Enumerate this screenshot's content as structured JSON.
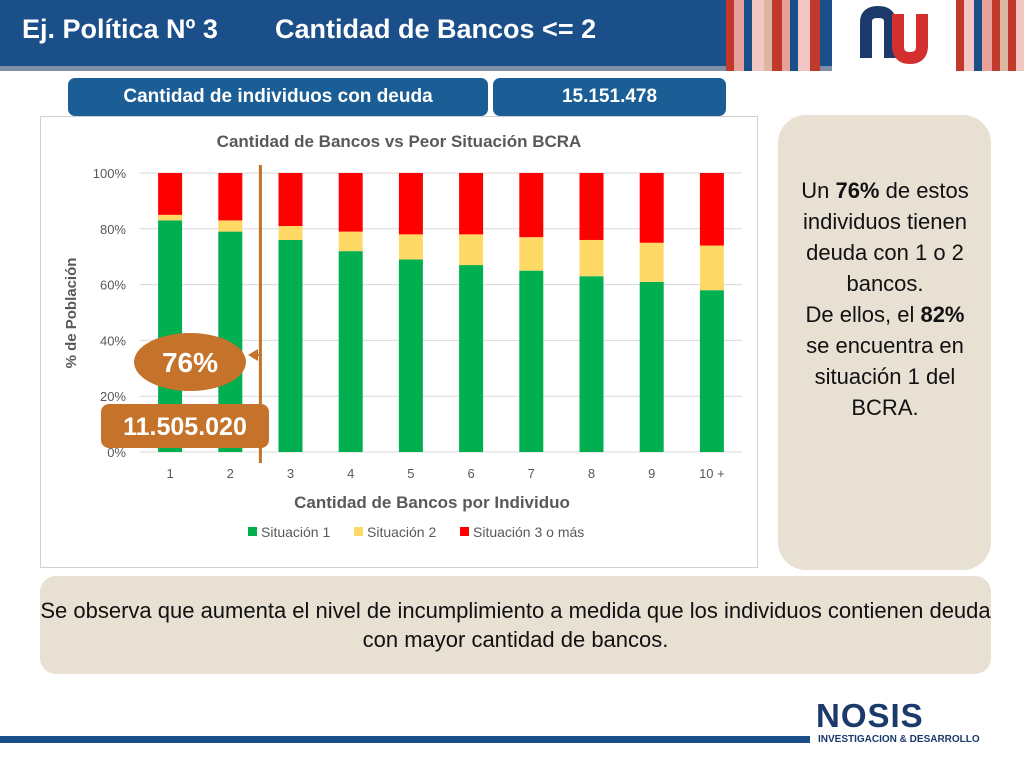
{
  "header": {
    "title": "Ej. Política Nº 3",
    "subtitle": "Cantidad de Bancos <= 2",
    "logo_icon": "nu-logo-icon"
  },
  "info_bar": {
    "label": "Cantidad de individuos con deuda",
    "value": "15.151.478"
  },
  "chart_data": {
    "type": "bar",
    "stacked": true,
    "title": "Cantidad de Bancos vs Peor Situación BCRA",
    "xlabel": "Cantidad de Bancos por Individuo",
    "ylabel": "% de Población",
    "categories": [
      "1",
      "2",
      "3",
      "4",
      "5",
      "6",
      "7",
      "8",
      "9",
      "10 +"
    ],
    "ylim": [
      0,
      100
    ],
    "yticks": [
      "0%",
      "20%",
      "40%",
      "60%",
      "80%",
      "100%"
    ],
    "legend_position": "bottom",
    "grid": true,
    "series": [
      {
        "name": "Situación 1",
        "color": "#00b050",
        "values": [
          83,
          79,
          76,
          72,
          69,
          67,
          65,
          63,
          61,
          58
        ]
      },
      {
        "name": "Situación 2",
        "color": "#ffd966",
        "values": [
          2,
          4,
          5,
          7,
          9,
          11,
          12,
          13,
          14,
          16
        ]
      },
      {
        "name": "Situación 3 o más",
        "color": "#ff0000",
        "values": [
          15,
          17,
          19,
          21,
          22,
          22,
          23,
          24,
          25,
          26
        ]
      }
    ],
    "annotations": {
      "percent_badge": "76%",
      "count_badge": "11.505.020"
    },
    "accent_color": "#c5732a"
  },
  "side_note": {
    "pre": "Un ",
    "pct1": "76%",
    "mid": " de estos individuos tienen deuda con 1 o 2 bancos.",
    "line2": "De ellos, el ",
    "pct2": "82%",
    "post": " se encuentra en situación 1 del BCRA."
  },
  "conclusion": "Se observa que aumenta el nivel de incumplimiento a medida que los individuos contienen deuda con mayor cantidad de bancos.",
  "footer": {
    "brand": "NOSIS",
    "tagline": "INVESTIGACION & DESARROLLO"
  }
}
